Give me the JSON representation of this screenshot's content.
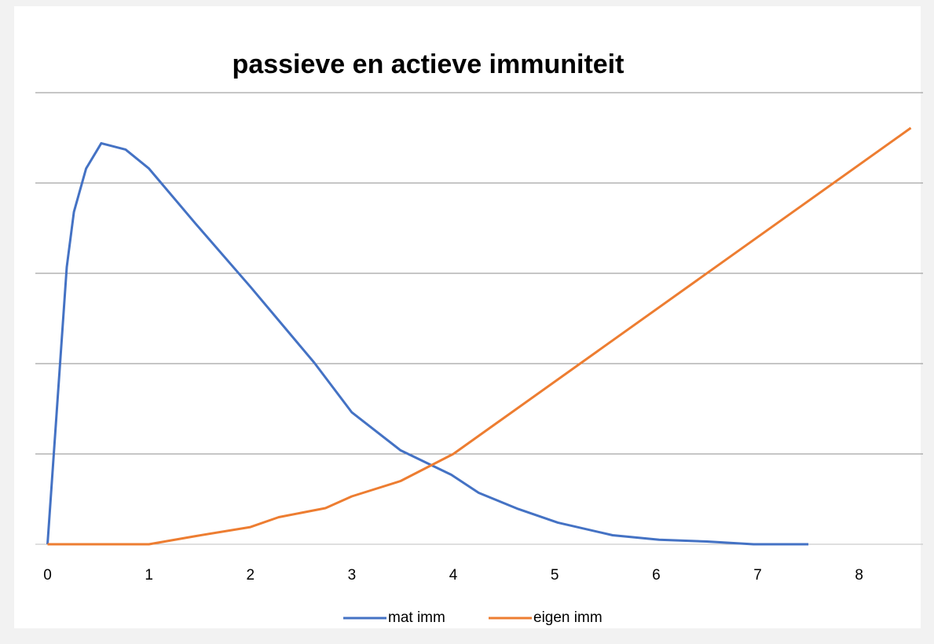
{
  "chart_data": {
    "type": "line",
    "title": "passieve en actieve immuniteit",
    "series": [
      {
        "name": "mat imm",
        "color": "#4472c4",
        "x": [
          0,
          0.19,
          0.26,
          0.38,
          0.53,
          0.77,
          1.0,
          1.46,
          2.0,
          2.63,
          3.0,
          3.48,
          3.98,
          4.25,
          4.64,
          5.03,
          5.57,
          6.03,
          6.5,
          6.96,
          7.5
        ],
        "values": [
          0,
          3.07,
          3.68,
          4.16,
          4.44,
          4.37,
          4.16,
          3.55,
          2.85,
          2.01,
          1.46,
          1.04,
          0.77,
          0.57,
          0.39,
          0.24,
          0.1,
          0.05,
          0.03,
          0,
          0
        ]
      },
      {
        "name": "eigen imm",
        "color": "#ed7d31",
        "x": [
          0,
          0.77,
          1.0,
          1.46,
          2.0,
          2.28,
          2.74,
          3.0,
          3.48,
          4.0,
          8.51
        ],
        "values": [
          0,
          0,
          0,
          0.09,
          0.19,
          0.3,
          0.4,
          0.53,
          0.7,
          1.0,
          4.61
        ]
      }
    ],
    "xlim": [
      -0.12,
      8.63
    ],
    "xticks": [
      0,
      1,
      2,
      3,
      4,
      5,
      6,
      7,
      8
    ],
    "ylim": [
      0,
      5
    ],
    "yticks": [
      0,
      1,
      2,
      3,
      4,
      5
    ],
    "grid": true,
    "legend": "bottom"
  }
}
